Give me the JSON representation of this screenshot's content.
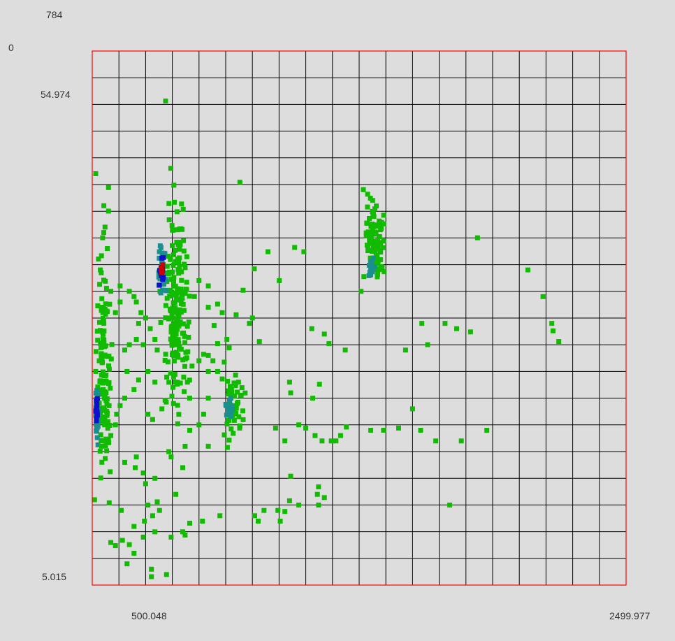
{
  "labels": {
    "count_max": "784",
    "count_min": "0",
    "y_max": "54.974",
    "y_min": "5.015",
    "x_tick": "500.048",
    "x_max": "2499.977"
  },
  "colors": {
    "background": "#dddddd",
    "frame": "#ff0000",
    "grid": "#000000",
    "point_low": "#11bb00",
    "density_mid": "#1a8f8f",
    "density_high": "#1010cc",
    "density_peak": "#cc0000"
  },
  "chart_data": {
    "type": "scatter",
    "title": "",
    "xlabel": "",
    "ylabel": "",
    "xlim": [
      200,
      2499.977
    ],
    "ylim": [
      5.015,
      54.974
    ],
    "x_tick_labels": [
      "500.048",
      "2499.977"
    ],
    "y_tick_labels": [
      "54.974",
      "5.015"
    ],
    "color_scale": {
      "min": 0,
      "max": 784
    },
    "grid": true,
    "grid_divisions": {
      "x": 20,
      "y": 20
    },
    "clusters": [
      {
        "name": "",
        "x_range": [
          480,
          640
        ],
        "y_range": [
          17,
          44
        ],
        "count": 180,
        "density": "peak",
        "peak_at": [
          500,
          34.6
        ]
      },
      {
        "name": "",
        "x_range": [
          210,
          290
        ],
        "y_range": [
          11,
          38
        ],
        "count": 120,
        "density": "high",
        "peak_at": [
          220,
          21.5
        ]
      },
      {
        "name": "",
        "x_range": [
          1350,
          1480
        ],
        "y_range": [
          32,
          42
        ],
        "count": 100,
        "density": "mid",
        "peak_at": [
          1400,
          34.8
        ]
      },
      {
        "name": "",
        "x_range": [
          740,
          880
        ],
        "y_range": [
          17,
          26
        ],
        "count": 45,
        "density": "mid",
        "peak_at": [
          790,
          21.5
        ]
      }
    ],
    "points": [
      [
        516,
        50.3
      ],
      [
        836,
        42.7
      ],
      [
        1368,
        42.0
      ],
      [
        1408,
        41.0
      ],
      [
        1860,
        37.5
      ],
      [
        2077,
        34.5
      ],
      [
        2142,
        32.0
      ],
      [
        2180,
        29.5
      ],
      [
        1620,
        29.5
      ],
      [
        1720,
        29.5
      ],
      [
        1770,
        29.0
      ],
      [
        1830,
        28.7
      ],
      [
        1645,
        27.5
      ],
      [
        1550,
        27.0
      ],
      [
        2185,
        28.8
      ],
      [
        2210,
        27.8
      ],
      [
        1072,
        36.6
      ],
      [
        1112,
        36.2
      ],
      [
        1006,
        33.5
      ],
      [
        898,
        34.6
      ],
      [
        957,
        36.2
      ],
      [
        890,
        30.0
      ],
      [
        877,
        29.5
      ],
      [
        920,
        27.8
      ],
      [
        1146,
        29.0
      ],
      [
        1200,
        28.5
      ],
      [
        1220,
        27.6
      ],
      [
        1290,
        27.0
      ],
      [
        740,
        27.6
      ],
      [
        700,
        26.5
      ],
      [
        700,
        25.0
      ],
      [
        830,
        24.0
      ],
      [
        800,
        23.3
      ],
      [
        1050,
        24.0
      ],
      [
        1055,
        23.0
      ],
      [
        1150,
        22.5
      ],
      [
        1179,
        23.8
      ],
      [
        1580,
        21.5
      ],
      [
        1615,
        19.5
      ],
      [
        1520,
        19.7
      ],
      [
        1400,
        19.5
      ],
      [
        1455,
        19.5
      ],
      [
        1295,
        19.8
      ],
      [
        1270,
        19.0
      ],
      [
        1160,
        19.0
      ],
      [
        1120,
        19.7
      ],
      [
        1090,
        20.0
      ],
      [
        1030,
        18.5
      ],
      [
        990,
        19.7
      ],
      [
        1190,
        18.5
      ],
      [
        1230,
        18.5
      ],
      [
        1250,
        18.5
      ],
      [
        1680,
        18.5
      ],
      [
        1790,
        18.5
      ],
      [
        1900,
        19.5
      ],
      [
        1055,
        15.2
      ],
      [
        1175,
        14.2
      ],
      [
        1050,
        12.9
      ],
      [
        1090,
        12.5
      ],
      [
        1030,
        11.9
      ],
      [
        1000,
        12.0
      ],
      [
        940,
        12.0
      ],
      [
        900,
        11.5
      ],
      [
        1175,
        12.5
      ],
      [
        1200,
        13.2
      ],
      [
        1170,
        13.5
      ],
      [
        1740,
        12.5
      ],
      [
        1010,
        11.0
      ],
      [
        915,
        11.0
      ],
      [
        750,
        11.5
      ],
      [
        675,
        11.0
      ],
      [
        590,
        10.0
      ],
      [
        620,
        10.8
      ],
      [
        380,
        10.5
      ],
      [
        470,
        10.0
      ],
      [
        325,
        12.0
      ],
      [
        440,
        12.5
      ],
      [
        480,
        12.8
      ],
      [
        490,
        12.0
      ],
      [
        425,
        11.0
      ],
      [
        460,
        11.5
      ],
      [
        560,
        13.5
      ],
      [
        420,
        15.5
      ],
      [
        430,
        14.5
      ],
      [
        385,
        16.0
      ],
      [
        340,
        16.5
      ],
      [
        390,
        17.0
      ],
      [
        470,
        15.0
      ],
      [
        590,
        16.0
      ],
      [
        540,
        17.0
      ],
      [
        530,
        17.5
      ],
      [
        600,
        18.0
      ],
      [
        620,
        19.5
      ],
      [
        660,
        20.0
      ],
      [
        680,
        21.0
      ],
      [
        700,
        22.5
      ],
      [
        620,
        22.5
      ],
      [
        550,
        22.0
      ],
      [
        500,
        21.5
      ],
      [
        460,
        20.5
      ],
      [
        440,
        21.0
      ],
      [
        300,
        20.0
      ],
      [
        280,
        19.0
      ],
      [
        260,
        18.5
      ],
      [
        240,
        18.0
      ],
      [
        305,
        21.0
      ],
      [
        320,
        21.8
      ],
      [
        340,
        22.5
      ],
      [
        380,
        23.3
      ],
      [
        400,
        24.2
      ],
      [
        440,
        25.0
      ],
      [
        470,
        24.0
      ],
      [
        610,
        24.0
      ],
      [
        630,
        25.5
      ],
      [
        660,
        26.0
      ],
      [
        680,
        26.6
      ],
      [
        720,
        26.0
      ],
      [
        740,
        25.0
      ],
      [
        760,
        24.3
      ],
      [
        700,
        18.0
      ],
      [
        210,
        13.0
      ],
      [
        280,
        9.0
      ],
      [
        350,
        7.0
      ],
      [
        455,
        5.8
      ],
      [
        455,
        6.5
      ],
      [
        520,
        6.0
      ],
      [
        540,
        9.5
      ],
      [
        600,
        9.7
      ],
      [
        420,
        9.5
      ],
      [
        360,
        8.8
      ],
      [
        330,
        9.2
      ],
      [
        300,
        8.7
      ],
      [
        380,
        8.0
      ],
      [
        215,
        43.5
      ],
      [
        270,
        42.2
      ],
      [
        250,
        40.5
      ],
      [
        270,
        40.0
      ],
      [
        255,
        38.5
      ],
      [
        245,
        37.5
      ],
      [
        265,
        36.5
      ],
      [
        235,
        34.5
      ],
      [
        280,
        32.5
      ],
      [
        240,
        31.0
      ],
      [
        250,
        29.5
      ],
      [
        300,
        30.5
      ],
      [
        320,
        31.5
      ],
      [
        360,
        32.5
      ],
      [
        320,
        33.0
      ],
      [
        380,
        32.0
      ],
      [
        390,
        31.5
      ],
      [
        410,
        30.5
      ],
      [
        430,
        30.0
      ],
      [
        450,
        29.0
      ],
      [
        470,
        28.0
      ],
      [
        480,
        27.0
      ],
      [
        360,
        27.5
      ],
      [
        340,
        27.0
      ],
      [
        400,
        29.5
      ],
      [
        390,
        28.0
      ],
      [
        420,
        27.5
      ],
      [
        350,
        25.0
      ],
      [
        250,
        26.5
      ],
      [
        230,
        26.0
      ],
      [
        215,
        25.0
      ],
      [
        640,
        32.0
      ],
      [
        660,
        33.5
      ],
      [
        700,
        33.0
      ],
      [
        725,
        29.3
      ],
      [
        760,
        30.5
      ],
      [
        820,
        30.3
      ],
      [
        850,
        32.6
      ],
      [
        780,
        28.0
      ],
      [
        790,
        27.2
      ],
      [
        740,
        31.3
      ],
      [
        700,
        31.0
      ]
    ]
  }
}
